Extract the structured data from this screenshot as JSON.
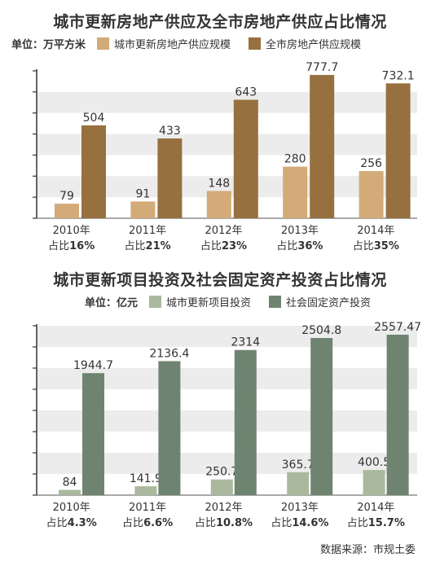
{
  "source": "数据来源：市规土委",
  "chart_data": [
    {
      "type": "bar",
      "title": "城市更新房地产供应及全市房地产供应占比情况",
      "unit": "单位：万平方米",
      "categories": [
        "2010年",
        "2011年",
        "2012年",
        "2013年",
        "2014年"
      ],
      "shares": [
        "16%",
        "21%",
        "23%",
        "36%",
        "35%"
      ],
      "share_prefix": "占比",
      "series": [
        {
          "name": "城市更新房地产供应规模",
          "values": [
            79,
            91,
            148,
            280,
            256
          ],
          "labels": [
            "79",
            "91",
            "148",
            "280",
            "256"
          ],
          "color": "#d3ab78"
        },
        {
          "name": "全市房地产供应规模",
          "values": [
            504,
            433,
            643,
            777.7,
            732.1
          ],
          "labels": [
            "504",
            "433",
            "643",
            "777.7",
            "732.1"
          ],
          "color": "#96703e"
        }
      ],
      "ylim": [
        0,
        800
      ],
      "grid": true,
      "legend_position": "top"
    },
    {
      "type": "bar",
      "title": "城市更新项目投资及社会固定资产投资占比情况",
      "unit": "单位：亿元",
      "categories": [
        "2010年",
        "2011年",
        "2012年",
        "2013年",
        "2014年"
      ],
      "shares": [
        "4.3%",
        "6.6%",
        "10.8%",
        "14.6%",
        "15.7%"
      ],
      "share_prefix": "占比",
      "series": [
        {
          "name": "城市更新项目投资",
          "values": [
            84,
            141.9,
            250.7,
            365.7,
            400.5
          ],
          "labels": [
            "84",
            "141.9",
            "250.7",
            "365.7",
            "400.5"
          ],
          "color": "#aab99d"
        },
        {
          "name": "社会固定资产投资",
          "values": [
            1944.7,
            2136.4,
            2314,
            2504.8,
            2557.47
          ],
          "labels": [
            "1944.7",
            "2136.4",
            "2314",
            "2504.8",
            "2557.47"
          ],
          "color": "#6f8470"
        }
      ],
      "ylim": [
        0,
        2700
      ],
      "grid": true,
      "legend_position": "top"
    }
  ]
}
